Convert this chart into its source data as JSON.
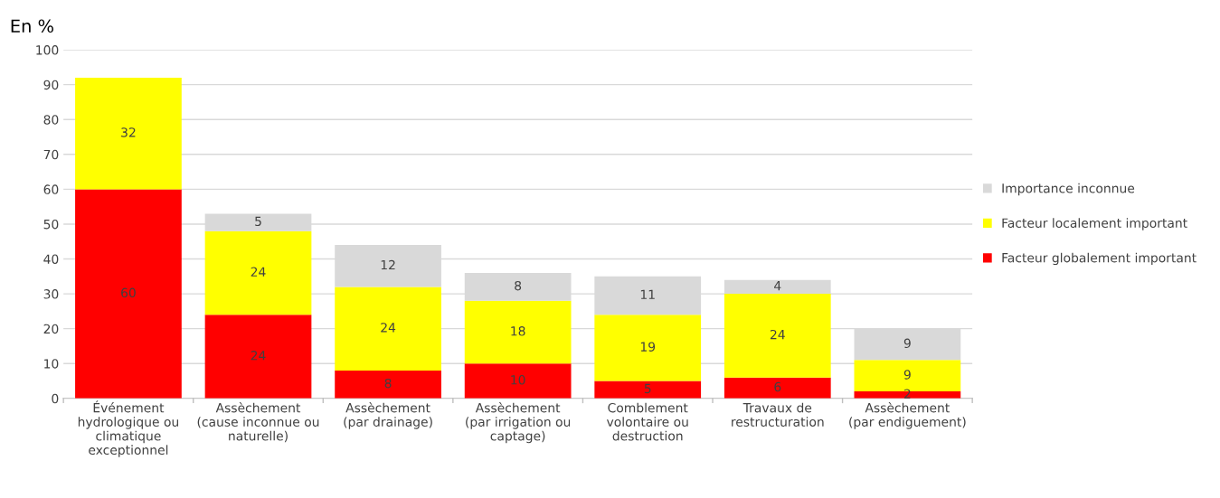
{
  "chart_data": {
    "type": "bar",
    "title": "En %",
    "stacked": true,
    "data_labels": true,
    "legend": "right",
    "grid": "y",
    "categories": [
      "Événement\nhydrologique ou\nclimatique\nexceptionnel",
      "Assèchement\n(cause inconnue ou\nnaturelle)",
      "Assèchement\n(par drainage)",
      "Assèchement\n(par irrigation ou\ncaptage)",
      "Comblement\nvolontaire ou\ndestruction",
      "Travaux de\nrestructuration",
      "Assèchement\n(par endiguement)"
    ],
    "series": [
      {
        "name": "Facteur globalement important",
        "color": "#ff0000",
        "values": [
          60,
          24,
          8,
          10,
          5,
          6,
          2
        ]
      },
      {
        "name": "Facteur localement important",
        "color": "#ffff00",
        "values": [
          32,
          24,
          24,
          18,
          19,
          24,
          9
        ]
      },
      {
        "name": "Importance inconnue",
        "color": "#d9d9d9",
        "values": [
          null,
          5,
          12,
          8,
          11,
          4,
          9
        ]
      }
    ],
    "ylim": [
      0,
      100
    ],
    "yticks": [
      0,
      10,
      20,
      30,
      40,
      50,
      60,
      70,
      80,
      90,
      100
    ]
  }
}
